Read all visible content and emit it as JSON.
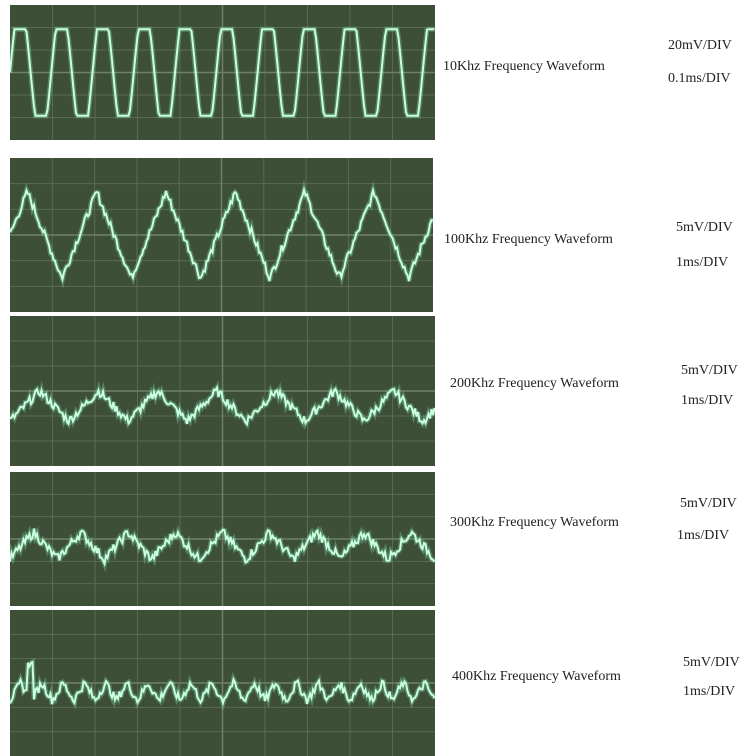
{
  "panels": [
    {
      "label": "10Khz Frequency Waveform",
      "volts_per_div": "20mV/DIV",
      "time_per_div": "0.1ms/DIV"
    },
    {
      "label": "100Khz Frequency Waveform",
      "volts_per_div": "5mV/DIV",
      "time_per_div": "1ms/DIV"
    },
    {
      "label": "200Khz Frequency Waveform",
      "volts_per_div": "5mV/DIV",
      "time_per_div": "1ms/DIV"
    },
    {
      "label": "300Khz Frequency Waveform",
      "volts_per_div": "5mV/DIV",
      "time_per_div": "1ms/DIV"
    },
    {
      "label": "400Khz Frequency Waveform",
      "volts_per_div": "5mV/DIV",
      "time_per_div": "1ms/DIV"
    }
  ]
}
